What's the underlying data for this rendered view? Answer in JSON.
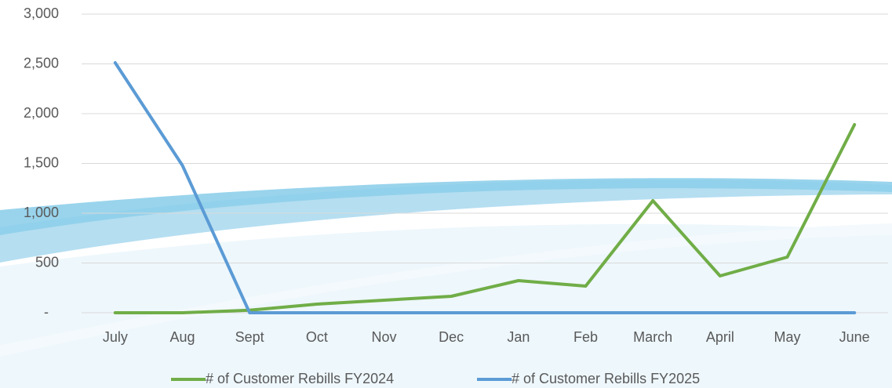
{
  "chart_data": {
    "type": "line",
    "categories": [
      "July",
      "Aug",
      "Sept",
      "Oct",
      "Nov",
      "Dec",
      "Jan",
      "Feb",
      "March",
      "April",
      "May",
      "June"
    ],
    "series": [
      {
        "name": "# of Customer Rebills FY2024",
        "color": "#70ad47",
        "values": [
          0,
          0,
          25,
          87,
          126,
          165,
          323,
          268,
          1126,
          370,
          559,
          1890
        ]
      },
      {
        "name": "# of Customer Rebills FY2025",
        "color": "#5b9bd5",
        "values": [
          2512,
          1480,
          0,
          0,
          0,
          0,
          0,
          0,
          0,
          0,
          0,
          0
        ]
      }
    ],
    "ylim": [
      0,
      3000
    ],
    "yticks": [
      {
        "value": 0,
        "label": "-"
      },
      500,
      {
        "value": 1000,
        "label": "1,000"
      },
      {
        "value": 1500,
        "label": "1,500"
      },
      {
        "value": 2000,
        "label": "2,000"
      },
      {
        "value": 2500,
        "label": "2,500"
      },
      {
        "value": 3000,
        "label": "3,000"
      }
    ],
    "grid": true,
    "legend": "bottom"
  }
}
